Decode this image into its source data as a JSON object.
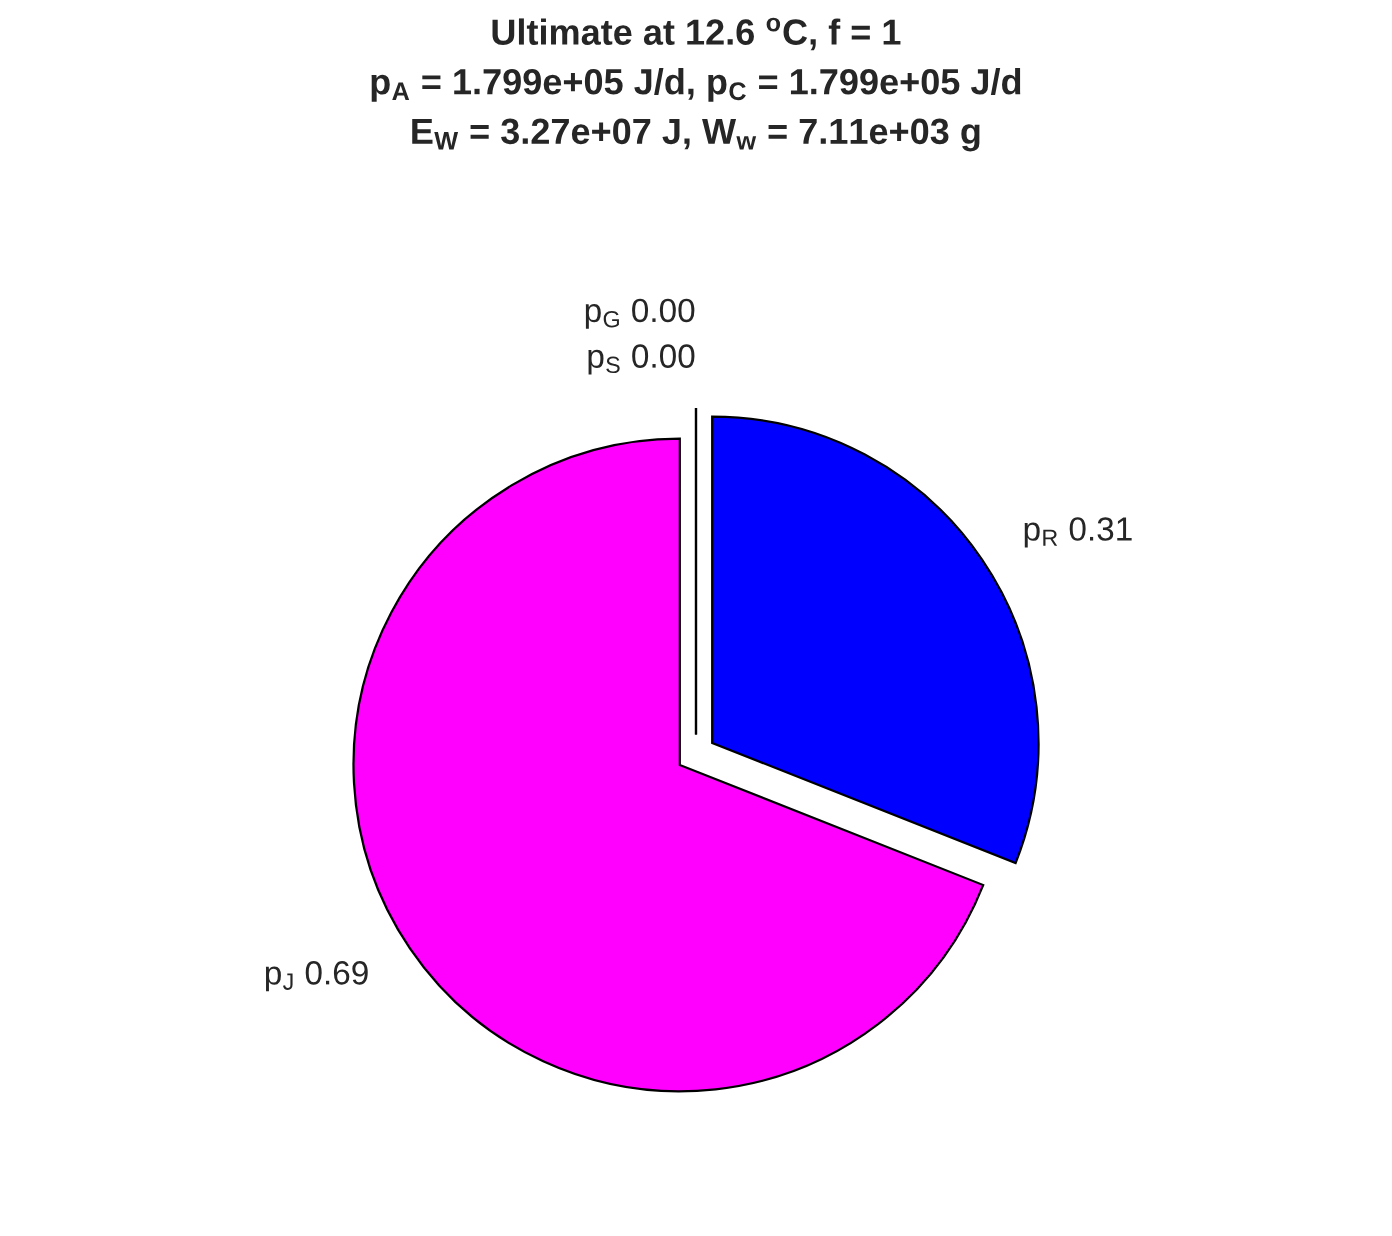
{
  "chart_data": {
    "type": "pie",
    "title": "Ultimate at 12.6 $^{o}$C, f = 1\np$_{A}$ = 1.799e+05 J/d, p$_{C}$ = 1.799e+05 J/d\nE$_{W}$ = 3.27e+07 J, W$_{w}$ = 7.11e+03 g",
    "categories": [
      "p$_{S}$ 0.00",
      "p$_{G}$ 0.00",
      "p$_{R}$ 0.31",
      "p$_{J}$ 0.69"
    ],
    "values": [
      0.0,
      0.0,
      0.31,
      0.69
    ],
    "colors": [
      "#00ffff",
      "#ffff00",
      "#0000ff",
      "#ff00ff"
    ]
  }
}
